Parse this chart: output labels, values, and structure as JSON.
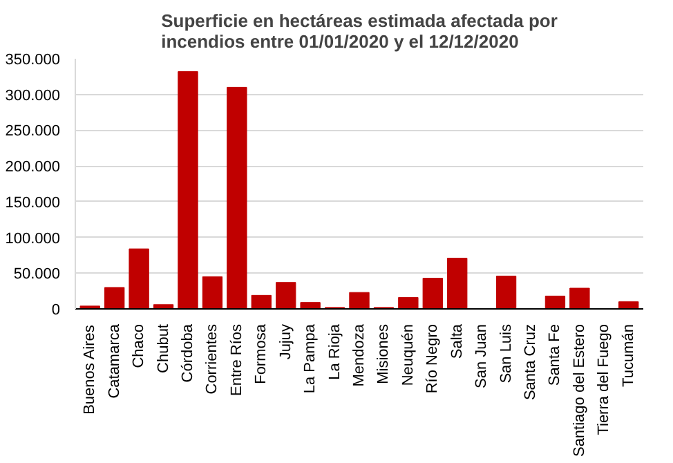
{
  "chart_data": {
    "type": "bar",
    "title": "Superficie en hectáreas estimada afectada por\nincendios entre 01/01/2020 y el 12/12/2020",
    "categories": [
      "Buenos Aires",
      "Catamarca",
      "Chaco",
      "Chubut",
      "Córdoba",
      "Corrientes",
      "Entre Ríos",
      "Formosa",
      "Jujuy",
      "La Pampa",
      "La Rioja",
      "Mendoza",
      "Misiones",
      "Neuquén",
      "Río Negro",
      "Salta",
      "San Juan",
      "San Luis",
      "Santa Cruz",
      "Santa Fe",
      "Santiago del Estero",
      "Tierra del Fuego",
      "Tucumán"
    ],
    "values": [
      4000,
      30000,
      84000,
      6000,
      332000,
      45000,
      310000,
      19000,
      37000,
      9000,
      2000,
      23000,
      2000,
      16000,
      43000,
      71000,
      0,
      46000,
      0,
      18000,
      29000,
      0,
      10000
    ],
    "color": "#c00000",
    "ylim": [
      0,
      350000
    ],
    "yticks": [
      {
        "value": 0,
        "label": "0"
      },
      {
        "value": 50000,
        "label": "50.000"
      },
      {
        "value": 100000,
        "label": "100.000"
      },
      {
        "value": 150000,
        "label": "150.000"
      },
      {
        "value": 200000,
        "label": "200.000"
      },
      {
        "value": 250000,
        "label": "250.000"
      },
      {
        "value": 300000,
        "label": "300.000"
      },
      {
        "value": 350000,
        "label": "350.000"
      }
    ],
    "grid": "y"
  }
}
